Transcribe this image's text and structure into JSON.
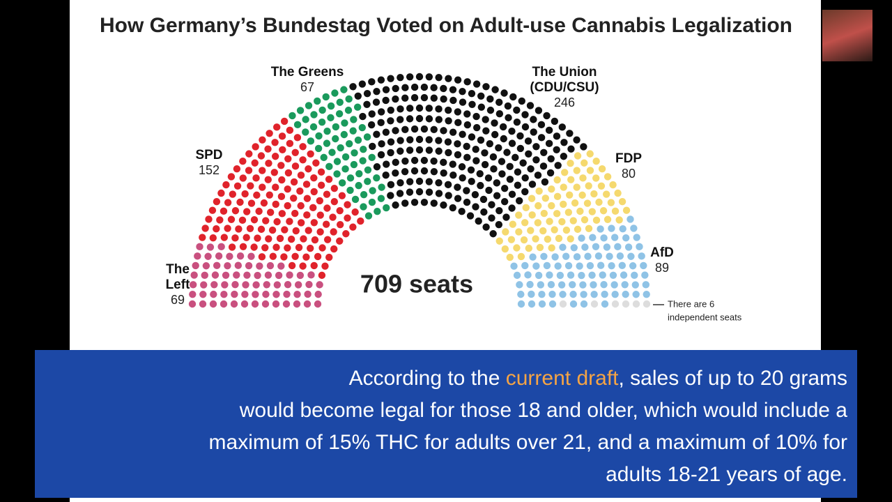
{
  "chart_data": {
    "type": "parliament",
    "title": "How Germany’s Bundestag Voted on Adult-use Cannabis Legalization",
    "center_label": "709 seats",
    "series": [
      {
        "name": "The Left",
        "color": "#c9507f",
        "values": [
          69
        ]
      },
      {
        "name": "SPD",
        "color": "#e0232b",
        "values": [
          152
        ]
      },
      {
        "name": "The Greens",
        "color": "#1a9a5c",
        "values": [
          67
        ]
      },
      {
        "name": "The Union (CDU/CSU)",
        "color": "#111111",
        "values": [
          246
        ]
      },
      {
        "name": "FDP",
        "color": "#f5d96e",
        "values": [
          80
        ]
      },
      {
        "name": "AfD",
        "color": "#8fc3e6",
        "values": [
          89
        ]
      }
    ],
    "independent": {
      "color": "#dddddd",
      "values": [
        6
      ],
      "annotation": [
        "There are 6",
        "independent seats"
      ]
    }
  },
  "caption": {
    "before": "According to the ",
    "highlight": "current draft",
    "after": ", sales of up to 20 grams",
    "lines": [
      "would become legal for those 18 and older, which would include a",
      "maximum of 15% THC for adults over 21, and a maximum of 10% for",
      "adults 18-21 years of age."
    ]
  }
}
